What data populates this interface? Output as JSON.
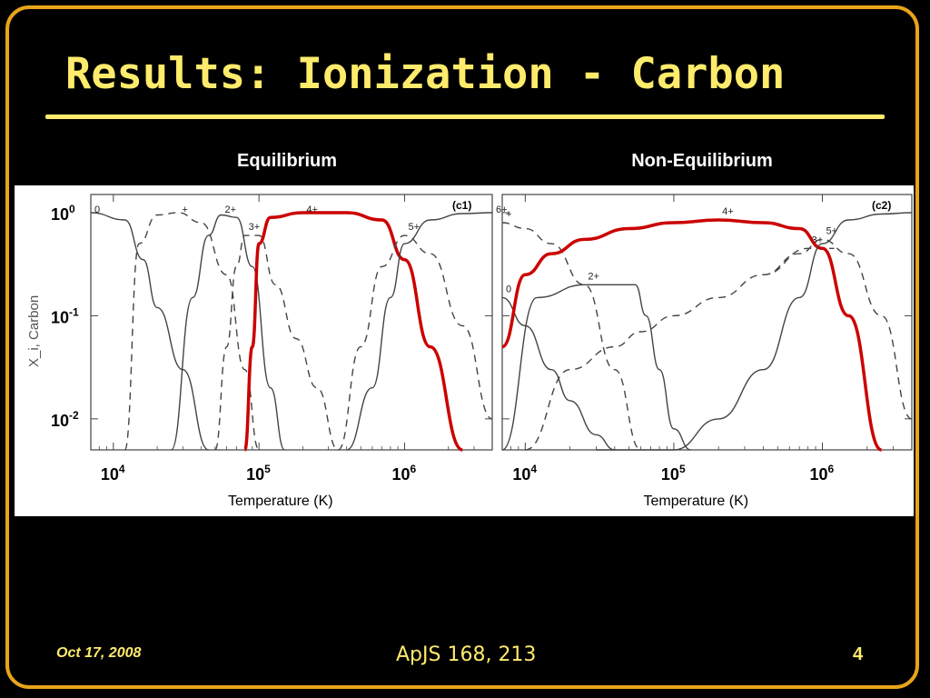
{
  "slide": {
    "title": "Results: Ionization - Carbon",
    "date": "Oct 17, 2008",
    "reference": "ApJS 168, 213",
    "page_number": "4"
  },
  "colors": {
    "title": "#ffeb6b",
    "frame": "#e8a41a",
    "highlight": "#cc0000"
  },
  "chart_data": [
    {
      "type": "line",
      "title": "Equilibrium",
      "panel_tag": "(c1)",
      "xscale": "log",
      "yscale": "log",
      "xlabel": "Temperature (K)",
      "ylabel": "X_i, Carbon",
      "xlim": [
        7000,
        4000000
      ],
      "ylim": [
        0.005,
        1.5
      ],
      "xticks": [
        "10^4",
        "10^5",
        "10^6"
      ],
      "yticks": [
        "10^0",
        "10^-1",
        "10^-2"
      ],
      "series": [
        {
          "name": "0",
          "style": "solid",
          "x": [
            7000,
            12000,
            16000,
            20000,
            30000,
            45000
          ],
          "y": [
            1.0,
            0.85,
            0.35,
            0.12,
            0.03,
            0.005
          ]
        },
        {
          "name": "+",
          "style": "dashed",
          "x": [
            12000,
            15000,
            20000,
            28000,
            40000,
            60000,
            80000,
            100000
          ],
          "y": [
            0.005,
            0.5,
            0.95,
            1.0,
            0.8,
            0.25,
            0.03,
            0.005
          ]
        },
        {
          "name": "2+",
          "style": "solid",
          "x": [
            25000,
            35000,
            45000,
            55000,
            70000,
            90000,
            120000,
            150000
          ],
          "y": [
            0.005,
            0.15,
            0.6,
            0.95,
            0.9,
            0.3,
            0.02,
            0.005
          ]
        },
        {
          "name": "3+",
          "style": "dashed",
          "x": [
            50000,
            60000,
            70000,
            80000,
            100000,
            130000,
            180000,
            250000,
            350000
          ],
          "y": [
            0.005,
            0.05,
            0.3,
            0.6,
            0.6,
            0.2,
            0.06,
            0.02,
            0.005
          ]
        },
        {
          "name": "4+",
          "style": "solid",
          "highlight": true,
          "x": [
            80000,
            90000,
            100000,
            120000,
            200000,
            400000,
            700000,
            1000000,
            1500000,
            2500000
          ],
          "y": [
            0.005,
            0.05,
            0.5,
            0.9,
            1.0,
            1.0,
            0.85,
            0.35,
            0.05,
            0.005
          ]
        },
        {
          "name": "5+",
          "style": "dashed",
          "x": [
            350000,
            500000,
            700000,
            1000000,
            1500000,
            2500000,
            4000000
          ],
          "y": [
            0.005,
            0.05,
            0.3,
            0.6,
            0.4,
            0.08,
            0.01
          ]
        },
        {
          "name": "6+",
          "style": "solid",
          "x": [
            400000,
            600000,
            800000,
            1000000,
            1500000,
            2500000,
            4000000
          ],
          "y": [
            0.005,
            0.02,
            0.15,
            0.5,
            0.85,
            0.98,
            1.0
          ]
        }
      ]
    },
    {
      "type": "line",
      "title": "Non-Equilibrium",
      "panel_tag": "(c2)",
      "xscale": "log",
      "yscale": "log",
      "xlabel": "Temperature (K)",
      "xlim": [
        7000,
        4000000
      ],
      "ylim": [
        0.005,
        1.5
      ],
      "xticks": [
        "10^4",
        "10^5",
        "10^6"
      ],
      "series": [
        {
          "name": "0",
          "style": "solid",
          "x": [
            7000,
            10000,
            15000,
            20000,
            30000,
            40000
          ],
          "y": [
            0.15,
            0.08,
            0.03,
            0.015,
            0.007,
            0.005
          ]
        },
        {
          "name": "+",
          "style": "dashed",
          "x": [
            7000,
            10000,
            15000,
            25000,
            40000,
            60000
          ],
          "y": [
            0.8,
            0.7,
            0.5,
            0.2,
            0.03,
            0.005
          ]
        },
        {
          "name": "2+",
          "style": "solid",
          "x": [
            7000,
            12000,
            25000,
            40000,
            55000,
            65000,
            80000,
            100000,
            130000
          ],
          "y": [
            0.005,
            0.15,
            0.2,
            0.2,
            0.2,
            0.1,
            0.03,
            0.008,
            0.005
          ]
        },
        {
          "name": "3+",
          "style": "dashed",
          "x": [
            10000,
            20000,
            40000,
            60000,
            100000,
            200000,
            400000,
            800000,
            1200000
          ],
          "y": [
            0.005,
            0.03,
            0.05,
            0.07,
            0.1,
            0.15,
            0.25,
            0.45,
            0.45
          ]
        },
        {
          "name": "4+",
          "style": "solid",
          "highlight": true,
          "x": [
            7000,
            10000,
            15000,
            25000,
            50000,
            100000,
            200000,
            400000,
            700000,
            1000000,
            1500000,
            2500000
          ],
          "y": [
            0.05,
            0.25,
            0.4,
            0.55,
            0.7,
            0.8,
            0.85,
            0.8,
            0.7,
            0.45,
            0.1,
            0.005
          ]
        },
        {
          "name": "5+",
          "style": "dashed",
          "x": [
            400000,
            700000,
            1000000,
            1500000,
            2500000,
            4000000
          ],
          "y": [
            0.25,
            0.4,
            0.55,
            0.4,
            0.1,
            0.01
          ]
        },
        {
          "name": "6+",
          "style": "solid",
          "x": [
            30000,
            60000,
            100000,
            200000,
            400000,
            700000,
            1000000,
            1500000,
            2500000,
            4000000
          ],
          "y": [
            0.005,
            0.005,
            0.005,
            0.01,
            0.03,
            0.15,
            0.5,
            0.85,
            0.97,
            1.0
          ]
        }
      ]
    }
  ],
  "labels": {
    "left_tag": "(c1)",
    "right_tag": "(c2)",
    "ylabel_text": "X_i, Carbon",
    "temperature_label": "Temperature (K)",
    "equilibrium": "Equilibrium",
    "non_equilibrium": "Non-Equilibrium"
  }
}
